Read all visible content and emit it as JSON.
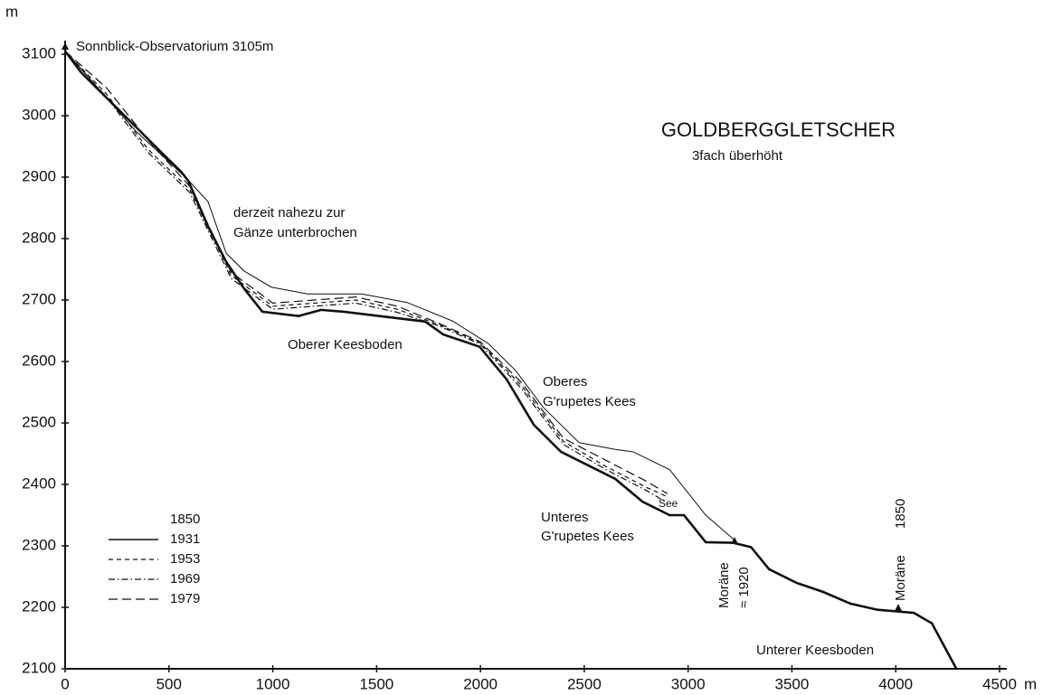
{
  "chart_data": {
    "type": "line",
    "title": "GOLDBERGGLETSCHER",
    "subtitle": "3fach überhöht",
    "x_label": "m",
    "y_label": "m",
    "xlim": [
      0,
      4500
    ],
    "ylim": [
      2100,
      3100
    ],
    "xticks": [
      0,
      500,
      1000,
      1500,
      2000,
      2500,
      3000,
      3500,
      4000,
      4500
    ],
    "yticks": [
      2100,
      2200,
      2300,
      2400,
      2500,
      2600,
      2700,
      2800,
      2900,
      3000,
      3100
    ],
    "grid": false,
    "legend": "lower left",
    "annotations": [
      "Sonnblick-Observatorium 3105m",
      "derzeit nahezu zur",
      "Gänze unterbrochen",
      "Oberer Keesboden",
      "Oberes",
      "G'rupetes Kees",
      "Unteres",
      "G'rupetes Kees",
      "See",
      "Moräne",
      "≈ 1920",
      "Moräne",
      "1850",
      "Unterer Keesboden"
    ],
    "series": [
      {
        "name": "1850",
        "color": "#111111",
        "style": "thin",
        "x": [
          0,
          122,
          340,
          500,
          593,
          688,
          776,
          863,
          993,
          1168,
          1429,
          1647,
          1865,
          2039,
          2170,
          2301,
          2475,
          2649,
          2736,
          2911,
          3085,
          3225
        ],
        "values": [
          3105,
          3059,
          2975,
          2925,
          2895,
          2860,
          2776,
          2747,
          2721,
          2710,
          2710,
          2696,
          2666,
          2629,
          2585,
          2526,
          2468,
          2457,
          2453,
          2424,
          2350,
          2309
        ]
      },
      {
        "name": "1931",
        "color": "#111111",
        "style": "thick",
        "x": [
          0,
          78,
          209,
          340,
          470,
          558,
          593,
          688,
          776,
          863,
          950,
          1124,
          1233,
          1342,
          1734,
          1821,
          1996,
          2126,
          2257,
          2388,
          2519,
          2649,
          2780,
          2911,
          2980,
          3085,
          3216,
          3303,
          3390,
          3521,
          3651,
          3782,
          3913,
          4087,
          4174,
          4292
        ],
        "values": [
          3105,
          3070,
          3026,
          2982,
          2938,
          2909,
          2894,
          2820,
          2762,
          2718,
          2681,
          2674,
          2684,
          2681,
          2665,
          2644,
          2624,
          2571,
          2497,
          2453,
          2431,
          2409,
          2372,
          2350,
          2350,
          2306,
          2305,
          2298,
          2262,
          2240,
          2225,
          2206,
          2196,
          2191,
          2174,
          2100
        ]
      },
      {
        "name": "1953",
        "color": "#111111",
        "style": "dashed",
        "x": [
          0,
          200,
          400,
          600,
          800,
          1000,
          1200,
          1400,
          1600,
          1800,
          2000,
          2200,
          2400,
          2600,
          2800,
          2900
        ],
        "values": [
          3105,
          3035,
          2945,
          2880,
          2740,
          2690,
          2695,
          2700,
          2685,
          2660,
          2630,
          2560,
          2470,
          2430,
          2395,
          2380
        ]
      },
      {
        "name": "1969",
        "color": "#111111",
        "style": "dashdot",
        "x": [
          0,
          200,
          400,
          600,
          800,
          1000,
          1200,
          1400,
          1600,
          1800,
          2000,
          2200,
          2400,
          2600,
          2800,
          2900
        ],
        "values": [
          3105,
          3030,
          2940,
          2875,
          2735,
          2685,
          2690,
          2695,
          2680,
          2658,
          2628,
          2555,
          2465,
          2425,
          2390,
          2370
        ]
      },
      {
        "name": "1979",
        "color": "#111111",
        "style": "longdash",
        "x": [
          0,
          200,
          400,
          600,
          800,
          1000,
          1200,
          1400,
          1600,
          1800,
          2000,
          2200,
          2400,
          2600,
          2800,
          2900
        ],
        "values": [
          3105,
          3045,
          2960,
          2885,
          2745,
          2695,
          2700,
          2705,
          2690,
          2662,
          2632,
          2565,
          2475,
          2440,
          2405,
          2385
        ]
      }
    ]
  }
}
